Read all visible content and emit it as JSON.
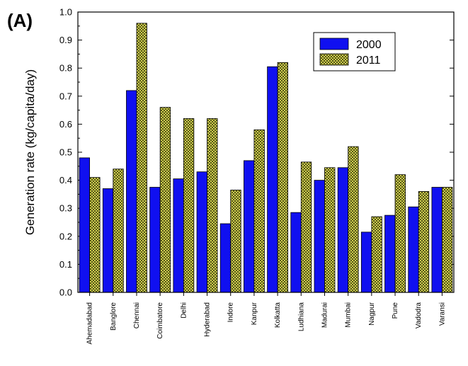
{
  "panel_label": "(A)",
  "colors": {
    "series_2000": "#1010f0",
    "series_2011": "#e6e65a",
    "series_2011_hatch": "#222200"
  },
  "chart_data": {
    "type": "bar",
    "title": "",
    "xlabel": "",
    "ylabel": "Generation rate (kg/capita/day)",
    "ylim": [
      0,
      1.0
    ],
    "yticks": [
      "0.0",
      "0.1",
      "0.2",
      "0.3",
      "0.4",
      "0.5",
      "0.6",
      "0.7",
      "0.8",
      "0.9",
      "1.0"
    ],
    "legend_position": "top-right",
    "categories": [
      "Ahemadabad",
      "Banglore",
      "Chennai",
      "Coimbatore",
      "Delhi",
      "Hyderabad",
      "Indore",
      "Kanpur",
      "Kolkatta",
      "Ludhiana",
      "Madurai",
      "Mumbai",
      "Nagpur",
      "Pune",
      "Vadodra",
      "Varansi"
    ],
    "series": [
      {
        "name": "2000",
        "values": [
          0.48,
          0.37,
          0.72,
          0.375,
          0.405,
          0.43,
          0.245,
          0.47,
          0.805,
          0.285,
          0.4,
          0.445,
          0.215,
          0.275,
          0.305,
          0.375
        ]
      },
      {
        "name": "2011",
        "values": [
          0.41,
          0.44,
          0.96,
          0.66,
          0.62,
          0.62,
          0.365,
          0.58,
          0.82,
          0.465,
          0.445,
          0.52,
          0.27,
          0.42,
          0.36,
          0.375
        ]
      }
    ]
  }
}
